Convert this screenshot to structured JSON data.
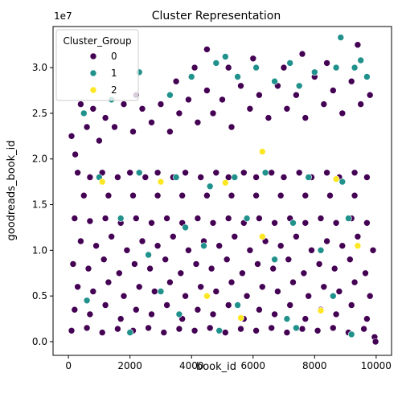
{
  "chart_data": {
    "type": "scatter",
    "title": "Cluster Representation",
    "xlabel": "book_id",
    "ylabel": "goodreads_book_id",
    "yaxis_offset_label": "1e7",
    "xlim": [
      -500,
      10500
    ],
    "ylim": [
      -0.15,
      3.45
    ],
    "x_ticks": [
      0,
      2000,
      4000,
      6000,
      8000,
      10000
    ],
    "x_tick_labels": [
      "0",
      "2000",
      "4000",
      "6000",
      "8000",
      "10000"
    ],
    "y_ticks": [
      0.0,
      0.5,
      1.0,
      1.5,
      2.0,
      2.5,
      3.0
    ],
    "y_tick_labels": [
      "0.0",
      "0.5",
      "1.0",
      "1.5",
      "2.0",
      "2.5",
      "3.0"
    ],
    "grid": false,
    "legend": {
      "title": "Cluster_Group",
      "placement": "upper-left",
      "entries": [
        {
          "label": "0",
          "color": "#440154"
        },
        {
          "label": "1",
          "color": "#21918c"
        },
        {
          "label": "2",
          "color": "#fde725"
        }
      ]
    },
    "series": [
      {
        "name": "0",
        "color": "#440154",
        "points": [
          [
            100,
            2.25
          ],
          [
            220,
            2.05
          ],
          [
            400,
            2.6
          ],
          [
            600,
            2.35
          ],
          [
            800,
            2.55
          ],
          [
            1000,
            2.2
          ],
          [
            1200,
            2.45
          ],
          [
            1500,
            2.35
          ],
          [
            1800,
            2.6
          ],
          [
            2100,
            2.3
          ],
          [
            2400,
            2.55
          ],
          [
            2700,
            2.4
          ],
          [
            3000,
            2.6
          ],
          [
            3300,
            2.3
          ],
          [
            3600,
            2.5
          ],
          [
            3900,
            2.65
          ],
          [
            4200,
            2.4
          ],
          [
            4500,
            2.75
          ],
          [
            4700,
            2.5
          ],
          [
            5000,
            2.65
          ],
          [
            5300,
            2.35
          ],
          [
            5600,
            2.8
          ],
          [
            5900,
            2.55
          ],
          [
            6200,
            2.7
          ],
          [
            6500,
            2.45
          ],
          [
            6800,
            2.8
          ],
          [
            7100,
            2.55
          ],
          [
            7400,
            2.7
          ],
          [
            7700,
            2.45
          ],
          [
            8000,
            2.9
          ],
          [
            8300,
            2.6
          ],
          [
            8600,
            2.75
          ],
          [
            8900,
            2.5
          ],
          [
            9200,
            2.85
          ],
          [
            9500,
            2.6
          ],
          [
            9800,
            2.7
          ],
          [
            4500,
            3.2
          ],
          [
            5200,
            3.0
          ],
          [
            6000,
            3.1
          ],
          [
            7600,
            3.15
          ],
          [
            8400,
            3.05
          ],
          [
            9400,
            3.25
          ],
          [
            2200,
            2.7
          ],
          [
            3500,
            2.85
          ],
          [
            4100,
            3.0
          ],
          [
            7000,
            3.0
          ],
          [
            300,
            1.85
          ],
          [
            700,
            1.8
          ],
          [
            1100,
            1.85
          ],
          [
            1600,
            1.8
          ],
          [
            2000,
            1.85
          ],
          [
            2500,
            1.8
          ],
          [
            2900,
            1.85
          ],
          [
            3400,
            1.8
          ],
          [
            3800,
            1.85
          ],
          [
            4300,
            1.8
          ],
          [
            4800,
            1.85
          ],
          [
            5200,
            1.8
          ],
          [
            5700,
            1.85
          ],
          [
            6100,
            1.8
          ],
          [
            6600,
            1.85
          ],
          [
            7000,
            1.8
          ],
          [
            7500,
            1.85
          ],
          [
            7900,
            1.8
          ],
          [
            8400,
            1.85
          ],
          [
            8800,
            1.8
          ],
          [
            9300,
            1.85
          ],
          [
            9700,
            1.8
          ],
          [
            500,
            1.6
          ],
          [
            1300,
            1.6
          ],
          [
            2100,
            1.6
          ],
          [
            2900,
            1.6
          ],
          [
            3700,
            1.6
          ],
          [
            4500,
            1.6
          ],
          [
            5300,
            1.6
          ],
          [
            6100,
            1.6
          ],
          [
            6900,
            1.6
          ],
          [
            7700,
            1.6
          ],
          [
            8500,
            1.6
          ],
          [
            9300,
            1.6
          ],
          [
            200,
            1.35
          ],
          [
            700,
            1.32
          ],
          [
            1200,
            1.35
          ],
          [
            1700,
            1.3
          ],
          [
            2200,
            1.35
          ],
          [
            2700,
            1.3
          ],
          [
            3200,
            1.35
          ],
          [
            3700,
            1.3
          ],
          [
            4200,
            1.35
          ],
          [
            4700,
            1.3
          ],
          [
            5200,
            1.35
          ],
          [
            5700,
            1.3
          ],
          [
            6200,
            1.35
          ],
          [
            6700,
            1.3
          ],
          [
            7200,
            1.35
          ],
          [
            7700,
            1.3
          ],
          [
            8200,
            1.35
          ],
          [
            8700,
            1.3
          ],
          [
            9200,
            1.35
          ],
          [
            9700,
            1.3
          ],
          [
            400,
            1.1
          ],
          [
            900,
            1.05
          ],
          [
            1400,
            1.15
          ],
          [
            1900,
            1.0
          ],
          [
            2400,
            1.1
          ],
          [
            2900,
            1.05
          ],
          [
            3400,
            1.15
          ],
          [
            3900,
            1.0
          ],
          [
            4400,
            1.1
          ],
          [
            4900,
            1.05
          ],
          [
            5400,
            1.15
          ],
          [
            5900,
            1.0
          ],
          [
            6400,
            1.1
          ],
          [
            6900,
            1.05
          ],
          [
            7400,
            1.15
          ],
          [
            7900,
            1.0
          ],
          [
            8400,
            1.1
          ],
          [
            8900,
            1.05
          ],
          [
            9400,
            1.15
          ],
          [
            9900,
            1.0
          ],
          [
            150,
            0.85
          ],
          [
            650,
            0.8
          ],
          [
            1150,
            0.9
          ],
          [
            1650,
            0.75
          ],
          [
            2150,
            0.85
          ],
          [
            2650,
            0.8
          ],
          [
            3150,
            0.9
          ],
          [
            3650,
            0.75
          ],
          [
            4150,
            0.85
          ],
          [
            4650,
            0.8
          ],
          [
            5150,
            0.9
          ],
          [
            5650,
            0.75
          ],
          [
            6150,
            0.85
          ],
          [
            6650,
            0.8
          ],
          [
            7150,
            0.9
          ],
          [
            7650,
            0.75
          ],
          [
            8150,
            0.85
          ],
          [
            8650,
            0.8
          ],
          [
            9150,
            0.9
          ],
          [
            9650,
            0.75
          ],
          [
            300,
            0.6
          ],
          [
            800,
            0.55
          ],
          [
            1300,
            0.65
          ],
          [
            1800,
            0.5
          ],
          [
            2300,
            0.6
          ],
          [
            2800,
            0.55
          ],
          [
            3300,
            0.65
          ],
          [
            3800,
            0.5
          ],
          [
            4300,
            0.6
          ],
          [
            4800,
            0.55
          ],
          [
            5300,
            0.65
          ],
          [
            5800,
            0.5
          ],
          [
            6300,
            0.6
          ],
          [
            6800,
            0.55
          ],
          [
            7300,
            0.65
          ],
          [
            7800,
            0.5
          ],
          [
            8300,
            0.6
          ],
          [
            8800,
            0.55
          ],
          [
            9300,
            0.65
          ],
          [
            9800,
            0.5
          ],
          [
            200,
            0.35
          ],
          [
            700,
            0.3
          ],
          [
            1200,
            0.4
          ],
          [
            1700,
            0.25
          ],
          [
            2200,
            0.35
          ],
          [
            2700,
            0.3
          ],
          [
            3200,
            0.4
          ],
          [
            3700,
            0.25
          ],
          [
            4200,
            0.35
          ],
          [
            4700,
            0.3
          ],
          [
            5200,
            0.4
          ],
          [
            5700,
            0.25
          ],
          [
            6200,
            0.35
          ],
          [
            6700,
            0.3
          ],
          [
            7200,
            0.4
          ],
          [
            7700,
            0.25
          ],
          [
            8200,
            0.35
          ],
          [
            8700,
            0.3
          ],
          [
            9200,
            0.4
          ],
          [
            9700,
            0.25
          ],
          [
            100,
            0.12
          ],
          [
            600,
            0.15
          ],
          [
            1100,
            0.1
          ],
          [
            1600,
            0.14
          ],
          [
            2100,
            0.12
          ],
          [
            2600,
            0.15
          ],
          [
            3100,
            0.1
          ],
          [
            3600,
            0.14
          ],
          [
            4100,
            0.12
          ],
          [
            4600,
            0.15
          ],
          [
            5100,
            0.1
          ],
          [
            5600,
            0.14
          ],
          [
            6100,
            0.12
          ],
          [
            6600,
            0.15
          ],
          [
            7100,
            0.1
          ],
          [
            7600,
            0.14
          ],
          [
            8100,
            0.12
          ],
          [
            8600,
            0.15
          ],
          [
            9100,
            0.1
          ],
          [
            9600,
            0.14
          ],
          [
            9950,
            0.05
          ],
          [
            9980,
            0.0
          ]
        ]
      },
      {
        "name": "1",
        "color": "#21918c",
        "points": [
          [
            500,
            2.5
          ],
          [
            1400,
            2.65
          ],
          [
            2300,
            2.95
          ],
          [
            3300,
            2.7
          ],
          [
            4000,
            2.9
          ],
          [
            4800,
            3.05
          ],
          [
            5100,
            3.12
          ],
          [
            5500,
            2.9
          ],
          [
            6100,
            3.0
          ],
          [
            6700,
            2.85
          ],
          [
            7200,
            3.05
          ],
          [
            7500,
            2.8
          ],
          [
            8000,
            2.95
          ],
          [
            8700,
            3.0
          ],
          [
            8850,
            3.33
          ],
          [
            9300,
            3.0
          ],
          [
            9500,
            3.08
          ],
          [
            9700,
            2.9
          ],
          [
            1000,
            1.8
          ],
          [
            2300,
            1.85
          ],
          [
            3500,
            1.8
          ],
          [
            4600,
            1.7
          ],
          [
            5400,
            1.8
          ],
          [
            6400,
            1.85
          ],
          [
            7800,
            1.8
          ],
          [
            8900,
            1.75
          ],
          [
            1700,
            1.35
          ],
          [
            3800,
            1.25
          ],
          [
            5800,
            1.35
          ],
          [
            7300,
            1.3
          ],
          [
            9100,
            1.35
          ],
          [
            2600,
            0.95
          ],
          [
            4400,
            1.05
          ],
          [
            6700,
            0.9
          ],
          [
            8200,
            1.0
          ],
          [
            600,
            0.45
          ],
          [
            3000,
            0.55
          ],
          [
            5500,
            0.4
          ],
          [
            8600,
            0.5
          ],
          [
            3600,
            0.3
          ],
          [
            7100,
            0.25
          ],
          [
            2000,
            0.1
          ],
          [
            4900,
            0.12
          ],
          [
            7400,
            0.15
          ],
          [
            9200,
            0.08
          ]
        ]
      },
      {
        "name": "2",
        "color": "#fde725",
        "points": [
          [
            1100,
            1.75
          ],
          [
            3000,
            1.75
          ],
          [
            5100,
            1.74
          ],
          [
            6300,
            2.08
          ],
          [
            8700,
            1.78
          ],
          [
            6300,
            1.15
          ],
          [
            8200,
            0.34
          ],
          [
            5600,
            0.26
          ],
          [
            9400,
            1.05
          ],
          [
            4500,
            0.5
          ]
        ]
      }
    ]
  }
}
